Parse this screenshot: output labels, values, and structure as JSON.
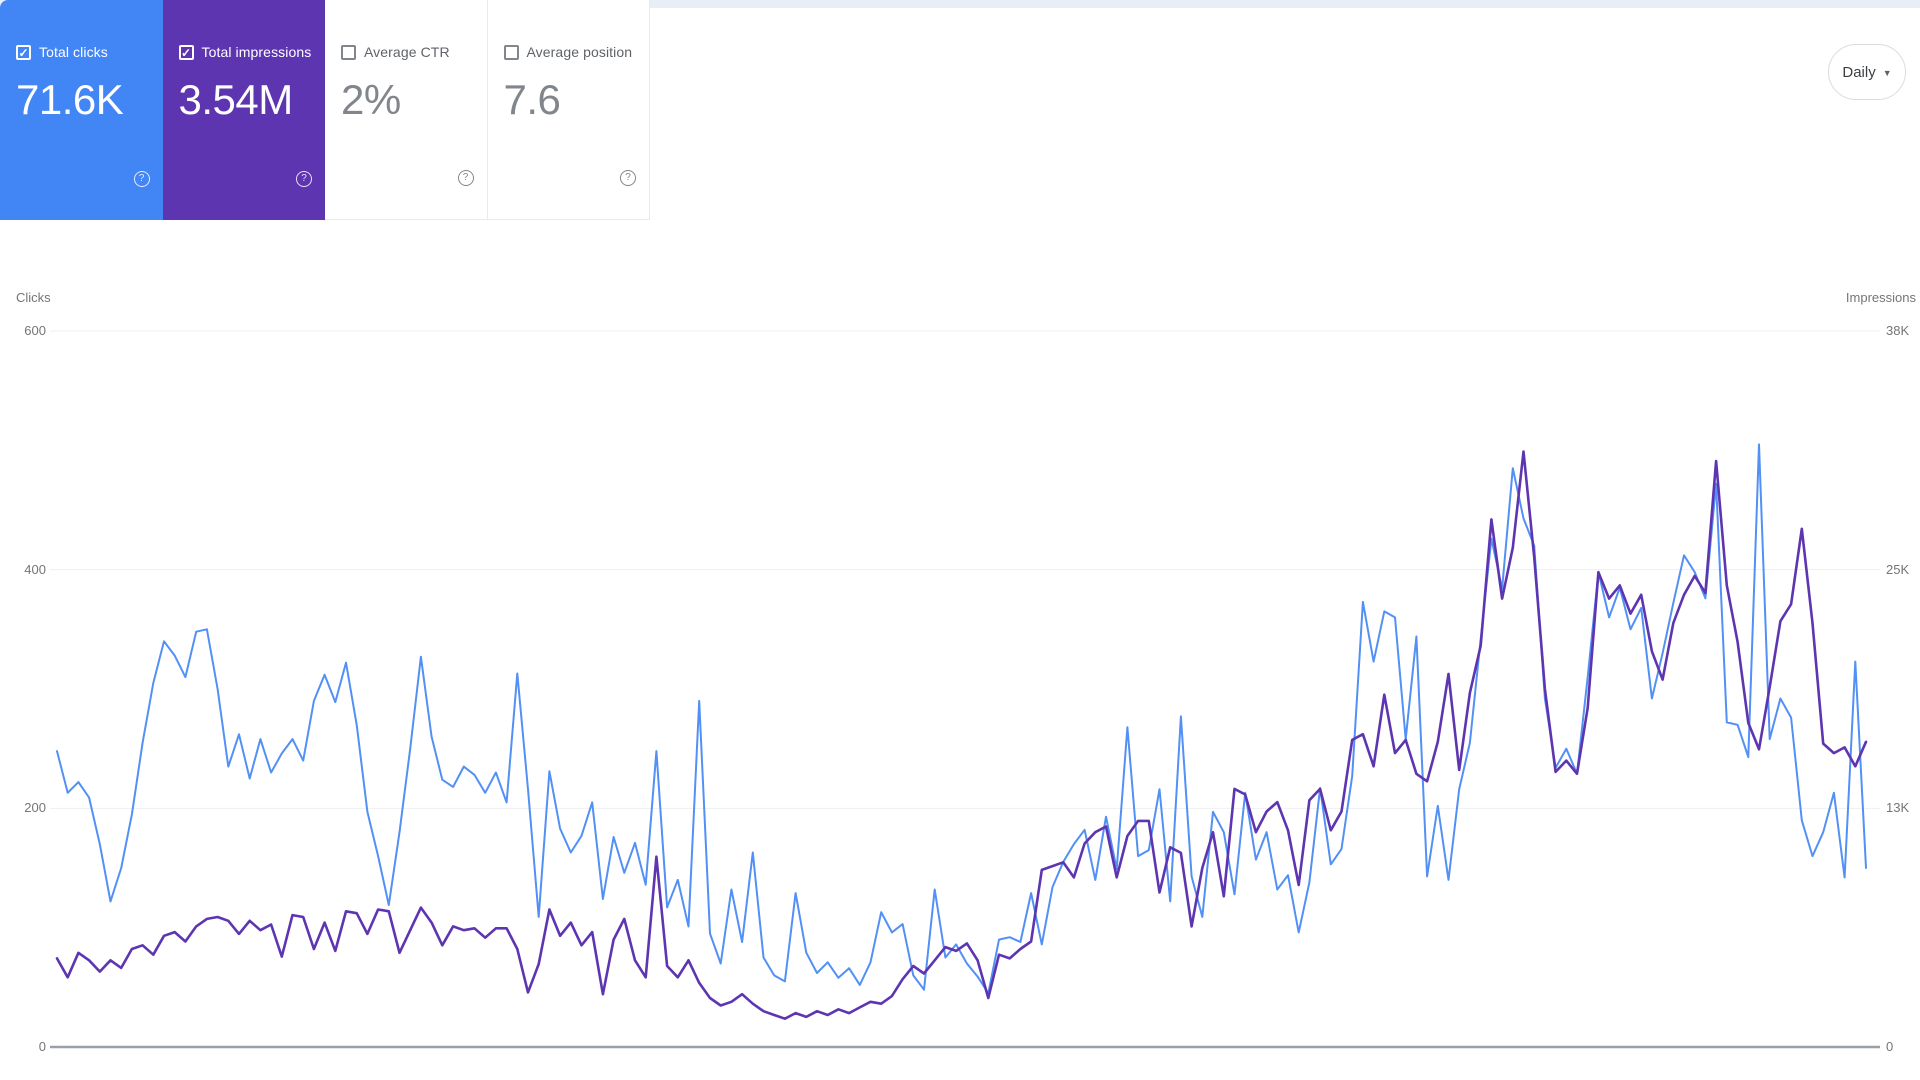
{
  "cards": [
    {
      "label": "Total clicks",
      "value": "71.6K",
      "checked": true,
      "check_glyph": "✓",
      "help_glyph": "?",
      "bg": "#4285f4",
      "label_color": "#ffffff",
      "value_color": "#ffffff",
      "checkbox_color": "#ffffff",
      "help_color": "rgba(255,255,255,0.85)"
    },
    {
      "label": "Total impressions",
      "value": "3.54M",
      "checked": true,
      "check_glyph": "✓",
      "help_glyph": "?",
      "bg": "#5e35b1",
      "label_color": "#ffffff",
      "value_color": "#ffffff",
      "checkbox_color": "#ffffff",
      "help_color": "rgba(255,255,255,0.85)"
    },
    {
      "label": "Average CTR",
      "value": "2%",
      "checked": false,
      "check_glyph": "",
      "help_glyph": "?",
      "bg": "#ffffff",
      "label_color": "#5f6368",
      "value_color": "#80868b",
      "checkbox_color": "#80868b",
      "help_color": "#80868b"
    },
    {
      "label": "Average position",
      "value": "7.6",
      "checked": false,
      "check_glyph": "",
      "help_glyph": "?",
      "bg": "#ffffff",
      "label_color": "#5f6368",
      "value_color": "#80868b",
      "checkbox_color": "#80868b",
      "help_color": "#80868b"
    }
  ],
  "granularity": {
    "label": "Daily",
    "caret_glyph": "▼"
  },
  "chart_data": {
    "type": "line",
    "title": "",
    "x_axis": {
      "tick_labels_visible": false
    },
    "legend_position": "none",
    "grid": true,
    "left_axis": {
      "title": "Clicks",
      "range": [
        0,
        600
      ],
      "ticks": [
        {
          "label": "600",
          "value": 600
        },
        {
          "label": "400",
          "value": 400
        },
        {
          "label": "200",
          "value": 200
        },
        {
          "label": "0",
          "value": 0
        }
      ]
    },
    "right_axis": {
      "title": "Impressions",
      "range": [
        0,
        38
      ],
      "unit": "K",
      "ticks": [
        {
          "label": "38K",
          "row": 600
        },
        {
          "label": "25K",
          "row": 400
        },
        {
          "label": "13K",
          "row": 200
        },
        {
          "label": "0",
          "row": 0
        }
      ]
    },
    "series": [
      {
        "name": "Total clicks",
        "axis": "left",
        "color": "#5290f5",
        "values": [
          248,
          213,
          222,
          209,
          170,
          122,
          150,
          195,
          255,
          305,
          340,
          328,
          310,
          348,
          350,
          300,
          235,
          262,
          225,
          258,
          230,
          246,
          258,
          240,
          290,
          312,
          289,
          322,
          270,
          197,
          160,
          119,
          180,
          250,
          327,
          260,
          224,
          218,
          235,
          228,
          213,
          230,
          205,
          313,
          216,
          109,
          231,
          183,
          163,
          177,
          205,
          124,
          176,
          146,
          171,
          136,
          248,
          117,
          140,
          101,
          290,
          95,
          70,
          132,
          88,
          163,
          75,
          60,
          55,
          129,
          79,
          62,
          71,
          58,
          66,
          52,
          71,
          113,
          96,
          103,
          60,
          48,
          132,
          75,
          86,
          70,
          59,
          45,
          90,
          92,
          88,
          129,
          86,
          134,
          155,
          170,
          182,
          140,
          193,
          149,
          268,
          160,
          165,
          216,
          122,
          277,
          143,
          109,
          197,
          180,
          128,
          213,
          157,
          180,
          132,
          144,
          96,
          138,
          217,
          153,
          166,
          227,
          373,
          323,
          365,
          360,
          258,
          344,
          143,
          202,
          140,
          216,
          255,
          342,
          426,
          384,
          485,
          443,
          420,
          292,
          234,
          250,
          229,
          310,
          398,
          360,
          385,
          350,
          368,
          292,
          330,
          372,
          412,
          398,
          376,
          472,
          272,
          270,
          243,
          505,
          258,
          292,
          276,
          190,
          160,
          180,
          213,
          142,
          323,
          150
        ]
      },
      {
        "name": "Total impressions",
        "axis": "right",
        "color": "#5e35b1",
        "values": [
          4.7,
          3.7,
          5.0,
          4.6,
          4.0,
          4.6,
          4.2,
          5.2,
          5.4,
          4.9,
          5.9,
          6.1,
          5.6,
          6.4,
          6.8,
          6.9,
          6.7,
          6.0,
          6.7,
          6.2,
          6.5,
          4.8,
          7.0,
          6.9,
          5.2,
          6.6,
          5.1,
          7.2,
          7.1,
          6.0,
          7.3,
          7.2,
          5.0,
          6.2,
          7.4,
          6.6,
          5.4,
          6.4,
          6.2,
          6.3,
          5.8,
          6.3,
          6.3,
          5.2,
          2.9,
          4.4,
          7.3,
          5.9,
          6.6,
          5.4,
          6.1,
          2.8,
          5.7,
          6.8,
          4.6,
          3.7,
          10.1,
          4.3,
          3.7,
          4.6,
          3.4,
          2.6,
          2.2,
          2.4,
          2.8,
          2.3,
          1.9,
          1.7,
          1.5,
          1.8,
          1.6,
          1.9,
          1.7,
          2.0,
          1.8,
          2.1,
          2.4,
          2.3,
          2.7,
          3.6,
          4.3,
          3.9,
          4.6,
          5.3,
          5.1,
          5.5,
          4.6,
          2.6,
          4.9,
          4.7,
          5.2,
          5.6,
          9.4,
          9.6,
          9.8,
          9.0,
          10.8,
          11.4,
          11.7,
          9.0,
          11.2,
          12.0,
          12.0,
          8.2,
          10.6,
          10.3,
          6.4,
          9.5,
          11.4,
          8.0,
          13.7,
          13.4,
          11.4,
          12.5,
          13.0,
          11.5,
          8.6,
          13.1,
          13.7,
          11.5,
          12.5,
          16.3,
          16.6,
          14.9,
          18.7,
          15.6,
          16.3,
          14.5,
          14.1,
          16.2,
          19.8,
          14.7,
          18.8,
          21.3,
          28.0,
          23.8,
          26.5,
          31.6,
          26.0,
          19.0,
          14.6,
          15.2,
          14.5,
          18.0,
          25.2,
          23.8,
          24.5,
          23.0,
          24.0,
          21.0,
          19.5,
          22.5,
          24.0,
          25.0,
          24.1,
          31.1,
          24.5,
          21.5,
          17.2,
          15.8,
          19.1,
          22.6,
          23.5,
          27.5,
          22.5,
          16.1,
          15.6,
          15.9,
          14.9,
          16.2
        ]
      }
    ]
  }
}
